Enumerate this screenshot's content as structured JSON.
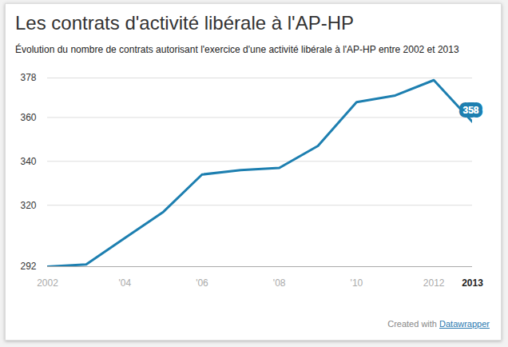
{
  "chart_data": {
    "type": "line",
    "title": "Les contrats d'activité libérale à l'AP-HP",
    "subtitle": "Évolution du nombre de contrats autorisant l'exercice d'une activité libérale à l'AP-HP entre 2002 et 2013",
    "caption": "Created with",
    "caption_link": "Datawrapper",
    "x": [
      2002,
      2003,
      2004,
      2005,
      2006,
      2007,
      2008,
      2009,
      2010,
      2011,
      2012,
      2013
    ],
    "values": [
      292,
      293,
      305,
      317,
      334,
      336,
      337,
      347,
      367,
      370,
      377,
      358
    ],
    "color": "#1d7fb0",
    "xlim": [
      2002,
      2013
    ],
    "xticks": [
      2002,
      {
        "value": 2004,
        "label": "'04"
      },
      {
        "value": 2006,
        "label": "'06"
      },
      {
        "value": 2008,
        "label": "'08"
      },
      {
        "value": 2010,
        "label": "'10"
      },
      2012,
      2013
    ],
    "ylim": [
      292,
      378
    ],
    "yticks": [
      292,
      320,
      340,
      360,
      378
    ],
    "grid": true,
    "annotations": [
      {
        "x": 2013,
        "y": 358,
        "label": "358"
      }
    ]
  }
}
